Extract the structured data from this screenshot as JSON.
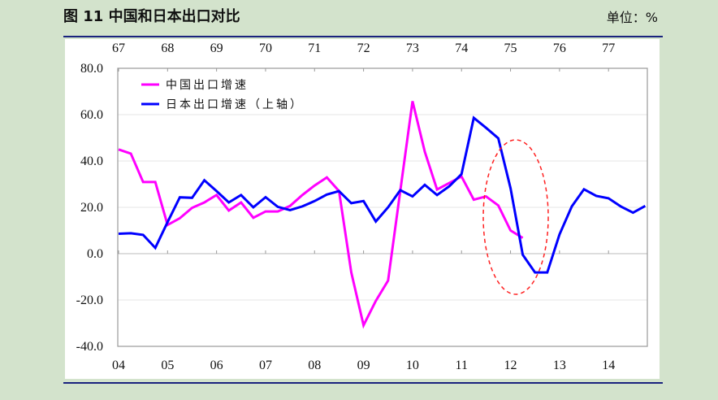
{
  "header": {
    "title": "图  11  中国和日本出口对比",
    "unit": "单位：%"
  },
  "chart_data": {
    "type": "line",
    "title": "图 11 中国和日本出口对比",
    "ylabel": "单位：%",
    "ylim": [
      -40,
      80
    ],
    "yticks": [
      "80.0",
      "60.0",
      "40.0",
      "20.0",
      "0.0",
      "-20.0",
      "-40.0"
    ],
    "ytick_values": [
      80,
      60,
      40,
      20,
      0,
      -20,
      -40
    ],
    "x_bottom_ticks": [
      "04",
      "05",
      "06",
      "07",
      "08",
      "09",
      "10",
      "11",
      "12",
      "13",
      "14"
    ],
    "x_top_ticks": [
      "67",
      "68",
      "69",
      "70",
      "71",
      "72",
      "73",
      "74",
      "75",
      "76",
      "77"
    ],
    "x_unit": "quarter index from start of bottom-axis year 04",
    "xlim": [
      0,
      43
    ],
    "legend_position": "top-left",
    "annotation": "red dashed ellipse around 2012 Q1-Q4",
    "series": [
      {
        "name": "中国出口增速",
        "color": "#ff00ff",
        "axis": "bottom",
        "values": [
          45,
          43.2,
          30.9,
          30.9,
          12.4,
          15.3,
          19.8,
          22.1,
          25.3,
          18.6,
          22.1,
          15.5,
          18.2,
          18.2,
          20.6,
          25.3,
          29.4,
          32.9,
          27,
          -8.1,
          -30.9,
          -20.4,
          -11.6,
          27,
          65.8,
          44,
          27.7,
          30.5,
          33.3,
          23.3,
          24.7,
          20.8,
          10,
          6.8
        ]
      },
      {
        "name": "日本出口增速（上轴）",
        "color": "#0000ff",
        "axis": "top",
        "values": [
          8.6,
          8.8,
          8.1,
          2.5,
          13.6,
          24.3,
          24.1,
          31.7,
          27,
          22.1,
          25.3,
          20,
          24.4,
          20.2,
          18.8,
          20.4,
          22.7,
          25.5,
          27,
          21.8,
          22.7,
          13.9,
          20,
          27.4,
          24.7,
          29.7,
          25.3,
          29.1,
          34.3,
          58.6,
          54.3,
          49.8,
          28.2,
          -0.5,
          -8.1,
          -8.1,
          8.3,
          20.4,
          27.8,
          24.9,
          23.9,
          20.4,
          17.7,
          20.6
        ]
      }
    ]
  }
}
